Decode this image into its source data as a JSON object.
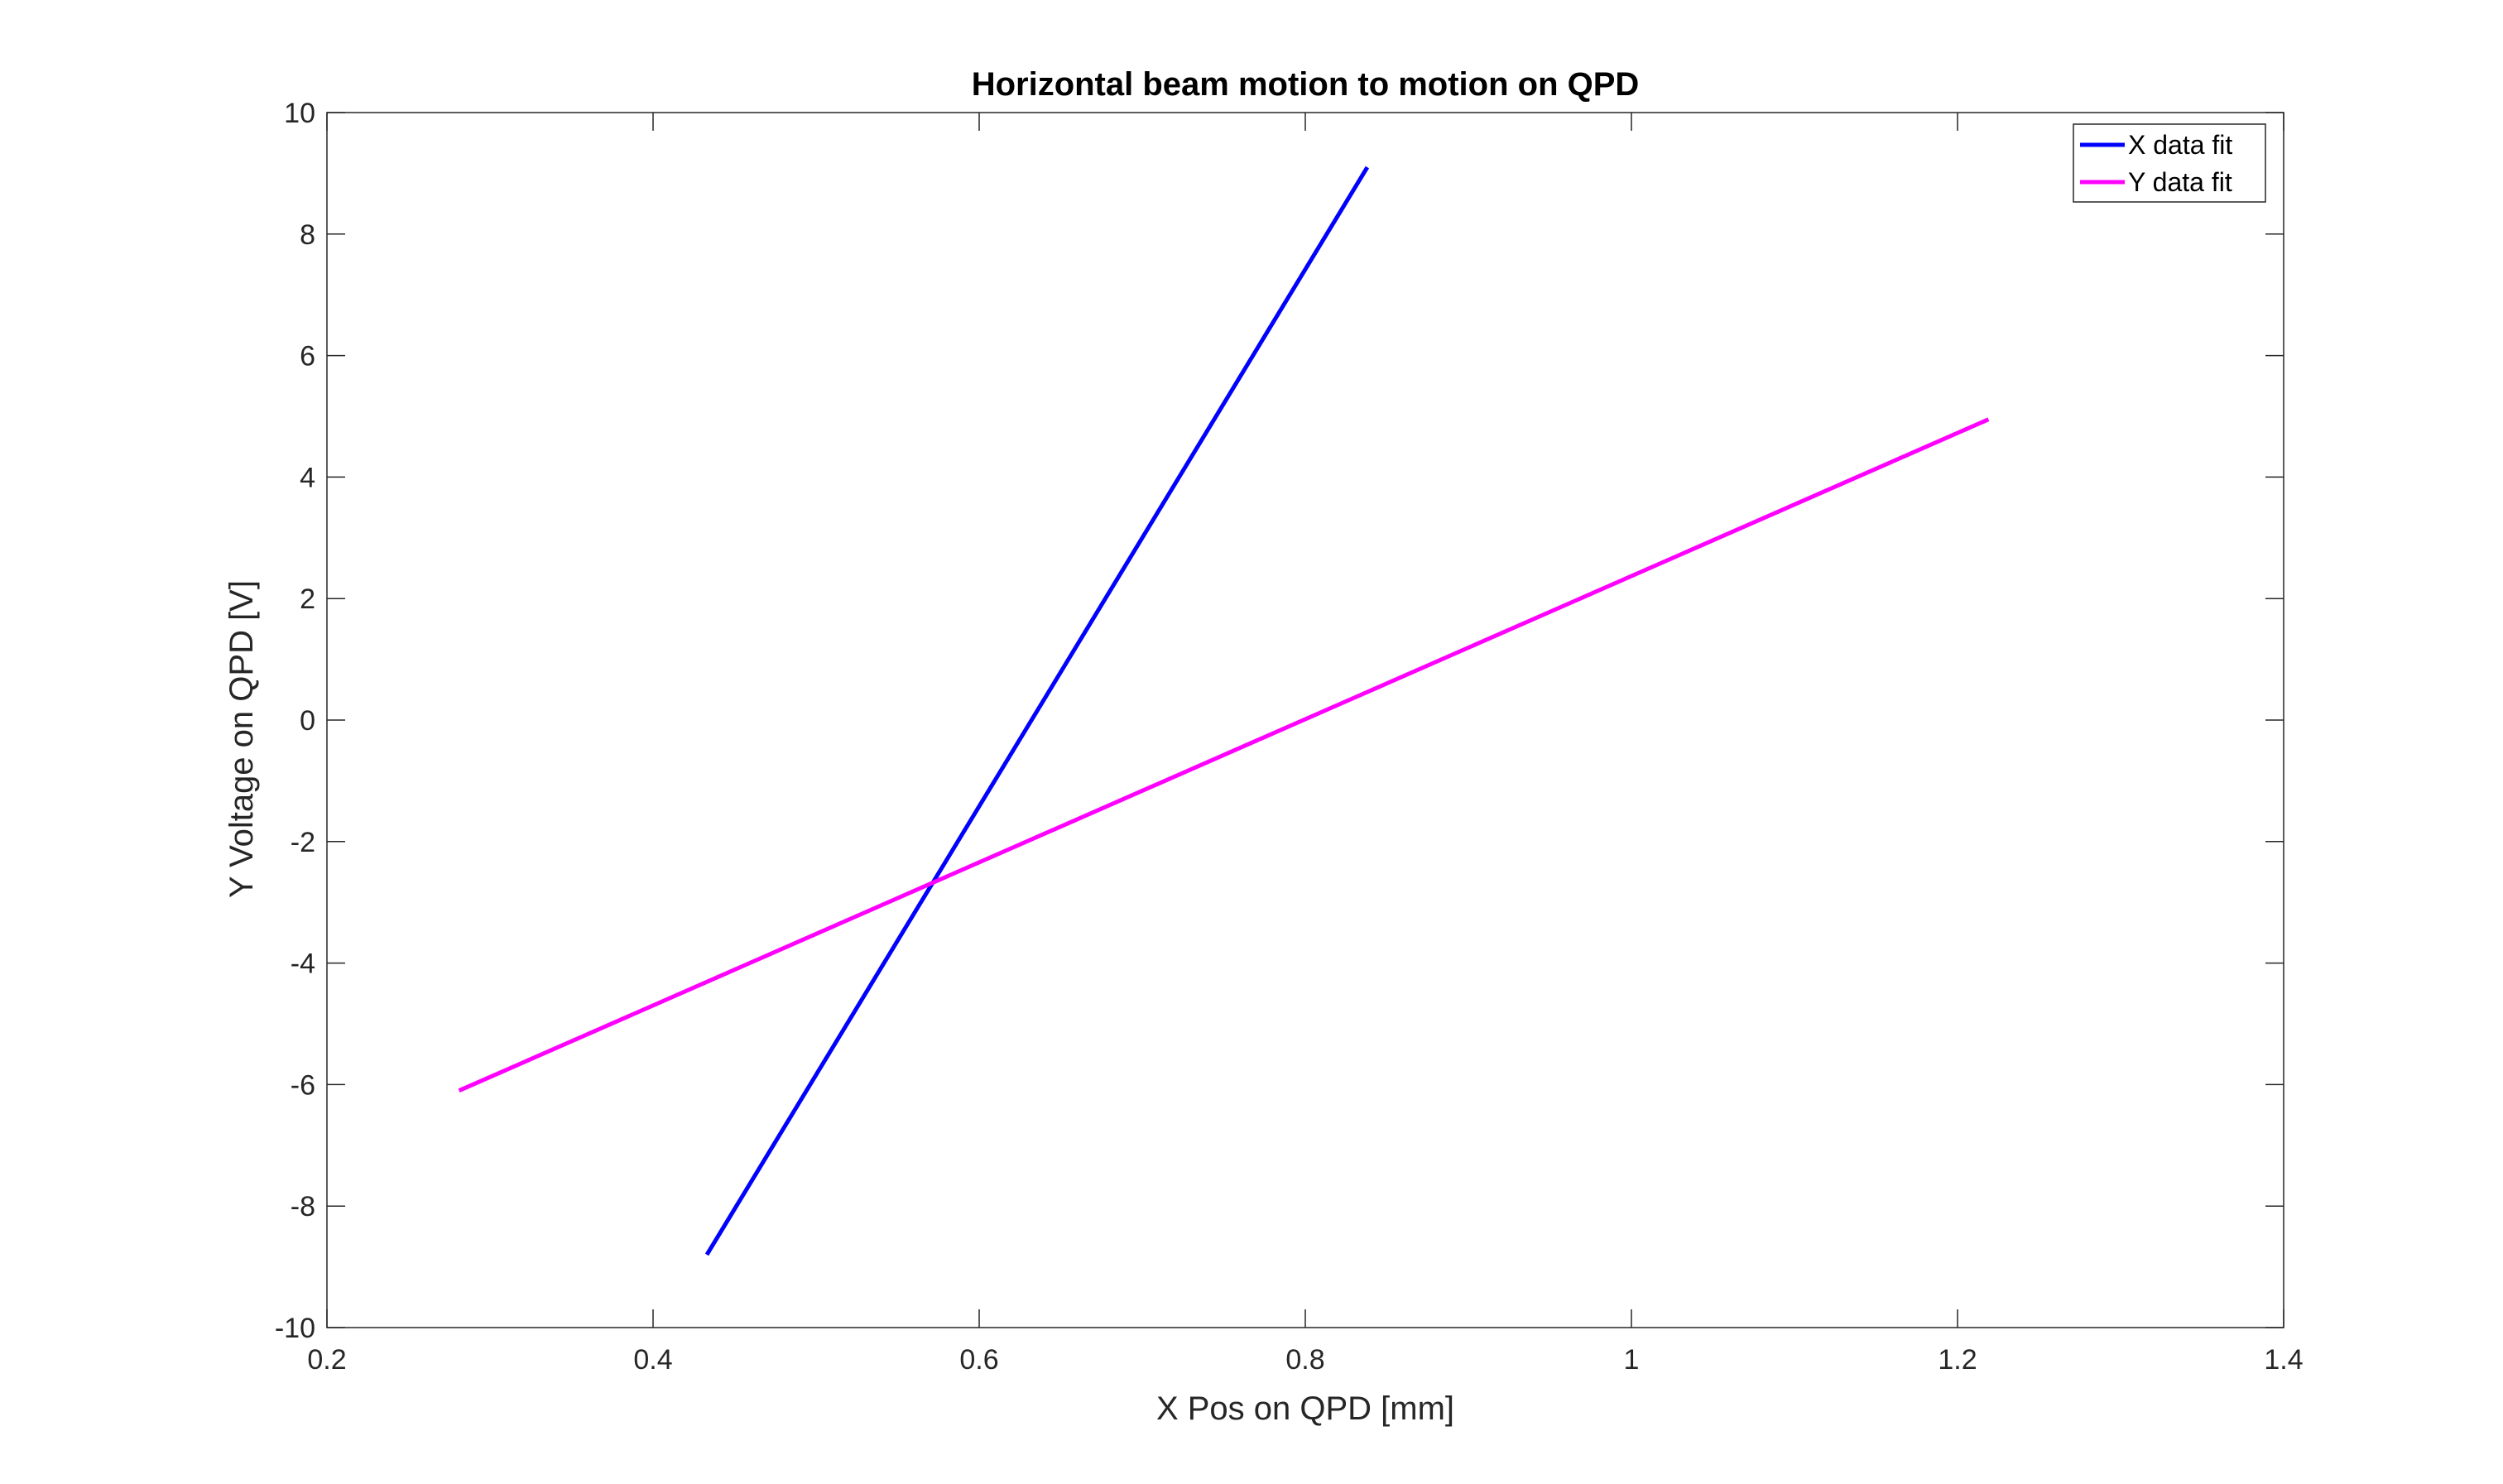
{
  "chart_data": {
    "type": "line",
    "title": "Horizontal beam motion to motion on QPD",
    "xlabel": "X Pos on QPD [mm]",
    "ylabel": "Y Voltage on QPD [V]",
    "xlim": [
      0.2,
      1.4
    ],
    "ylim": [
      -10,
      10
    ],
    "xticks": [
      0.2,
      0.4,
      0.6,
      0.8,
      1.0,
      1.2,
      1.4
    ],
    "xtick_labels": [
      "0.2",
      "0.4",
      "0.6",
      "0.8",
      "1",
      "1.2",
      "1.4"
    ],
    "yticks": [
      -10,
      -8,
      -6,
      -4,
      -2,
      0,
      2,
      4,
      6,
      8,
      10
    ],
    "ytick_labels": [
      "-10",
      "-8",
      "-6",
      "-4",
      "-2",
      "0",
      "2",
      "4",
      "6",
      "8",
      "10"
    ],
    "grid": false,
    "legend_position": "top-right",
    "series": [
      {
        "name": "X data fit",
        "color": "#0000ff",
        "x": [
          0.433,
          0.838
        ],
        "y": [
          -8.8,
          9.1
        ]
      },
      {
        "name": "Y data fit",
        "color": "#ff00ff",
        "x": [
          0.281,
          1.219
        ],
        "y": [
          -6.1,
          4.95
        ]
      }
    ]
  }
}
